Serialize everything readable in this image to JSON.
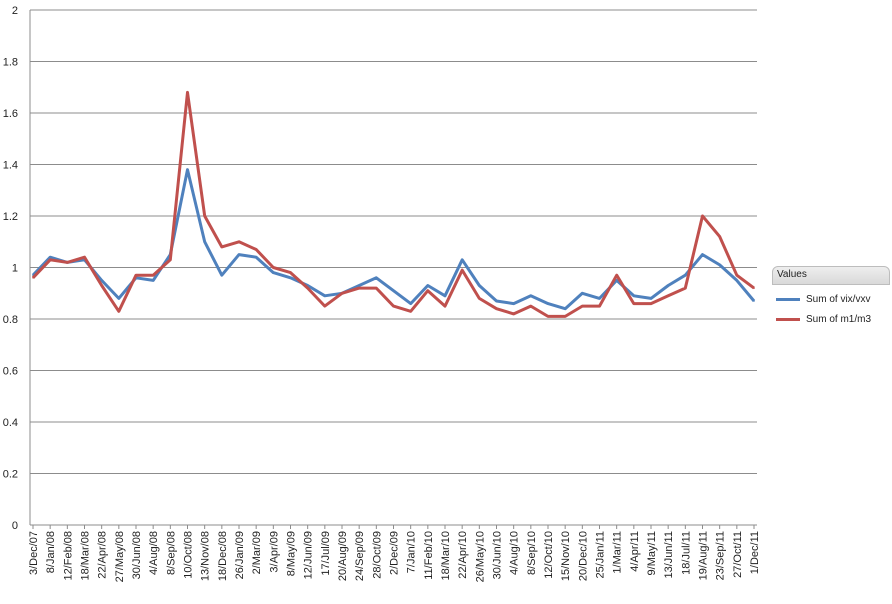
{
  "chart_data": {
    "type": "line",
    "ylim": [
      0,
      2
    ],
    "yticks": [
      "0",
      "0.2",
      "0.4",
      "0.6",
      "0.8",
      "1",
      "1.2",
      "1.4",
      "1.6",
      "1.8",
      "2"
    ],
    "grid": true,
    "legend_position": "right",
    "legend_title": "Values",
    "x": [
      "3/Dec/07",
      "8/Jan/08",
      "12/Feb/08",
      "18/Mar/08",
      "22/Apr/08",
      "27/May/08",
      "30/Jun/08",
      "4/Aug/08",
      "8/Sep/08",
      "10/Oct/08",
      "13/Nov/08",
      "18/Dec/08",
      "26/Jan/09",
      "2/Mar/09",
      "3/Apr/09",
      "8/May/09",
      "12/Jun/09",
      "17/Jul/09",
      "20/Aug/09",
      "24/Sep/09",
      "28/Oct/09",
      "2/Dec/09",
      "7/Jan/10",
      "11/Feb/10",
      "18/Mar/10",
      "22/Apr/10",
      "26/May/10",
      "30/Jun/10",
      "4/Aug/10",
      "8/Sep/10",
      "12/Oct/10",
      "15/Nov/10",
      "20/Dec/10",
      "25/Jan/11",
      "1/Mar/11",
      "4/Apr/11",
      "9/May/11",
      "13/Jun/11",
      "18/Jul/11",
      "19/Aug/11",
      "23/Sep/11",
      "27/Oct/11",
      "1/Dec/11"
    ],
    "series": [
      {
        "name": "Sum of vix/vxv",
        "color": "#4f81bd",
        "values": [
          0.97,
          1.04,
          1.02,
          1.03,
          0.95,
          0.88,
          0.96,
          0.95,
          1.05,
          1.38,
          1.1,
          0.97,
          1.05,
          1.04,
          0.98,
          0.96,
          0.93,
          0.89,
          0.9,
          0.93,
          0.96,
          0.91,
          0.86,
          0.93,
          0.89,
          1.03,
          0.93,
          0.87,
          0.86,
          0.89,
          0.86,
          0.84,
          0.9,
          0.88,
          0.95,
          0.89,
          0.88,
          0.93,
          0.97,
          1.05,
          1.01,
          0.95,
          0.87
        ]
      },
      {
        "name": "Sum of m1/m3",
        "color": "#c0504d",
        "values": [
          0.96,
          1.03,
          1.02,
          1.04,
          0.93,
          0.83,
          0.97,
          0.97,
          1.03,
          1.68,
          1.2,
          1.08,
          1.1,
          1.07,
          1.0,
          0.98,
          0.92,
          0.85,
          0.9,
          0.92,
          0.92,
          0.85,
          0.83,
          0.91,
          0.85,
          0.99,
          0.88,
          0.84,
          0.82,
          0.85,
          0.81,
          0.81,
          0.85,
          0.85,
          0.97,
          0.86,
          0.86,
          0.89,
          0.92,
          1.2,
          1.12,
          0.97,
          0.92
        ]
      }
    ]
  }
}
